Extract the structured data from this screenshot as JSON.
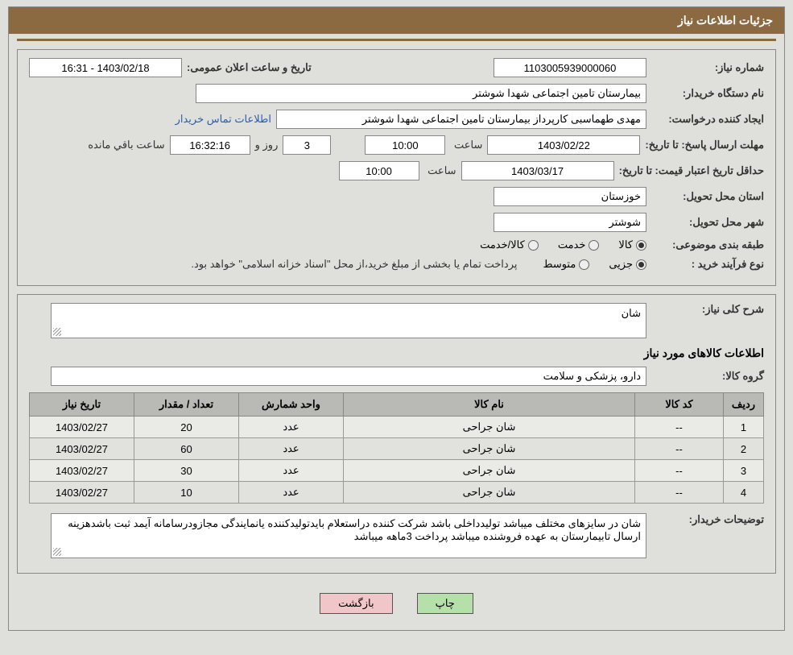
{
  "header": {
    "title": "جزئیات اطلاعات نیاز"
  },
  "info": {
    "request_no_label": "شماره نیاز:",
    "request_no": "1103005939000060",
    "announce_label": "تاریخ و ساعت اعلان عمومی:",
    "announce_value": "1403/02/18 - 16:31",
    "buyer_org_label": "نام دستگاه خریدار:",
    "buyer_org": "بیمارستان تامین اجتماعی شهدا شوشتر",
    "requester_label": "ایجاد کننده درخواست:",
    "requester": "مهدی طهماسبی کارپرداز بیمارستان تامین اجتماعی شهدا شوشتر",
    "contact_link": "اطلاعات تماس خریدار",
    "deadline_label": "مهلت ارسال پاسخ: تا تاریخ:",
    "deadline_date": "1403/02/22",
    "time_label": "ساعت",
    "deadline_time": "10:00",
    "days_remaining": "3",
    "days_suffix": "روز و",
    "time_remaining": "16:32:16",
    "remaining_suffix": "ساعت باقي مانده",
    "validity_label": "حداقل تاریخ اعتبار قیمت: تا تاریخ:",
    "validity_date": "1403/03/17",
    "validity_time": "10:00",
    "province_label": "استان محل تحویل:",
    "province": "خوزستان",
    "city_label": "شهر محل تحویل:",
    "city": "شوشتر",
    "category_label": "طبقه بندی موضوعی:",
    "cat_goods": "کالا",
    "cat_service": "خدمت",
    "cat_both": "کالا/خدمت",
    "purchase_type_label": "نوع فرآیند خرید :",
    "pt_minor": "جزیی",
    "pt_medium": "متوسط",
    "purchase_note": "پرداخت تمام یا بخشی از مبلغ خرید،از محل \"اسناد خزانه اسلامی\" خواهد بود."
  },
  "desc": {
    "general_label": "شرح کلی نیاز:",
    "general_value": "شان",
    "items_title": "اطلاعات کالاهای مورد نیاز",
    "group_label": "گروه کالا:",
    "group_value": "دارو، پزشکی و سلامت",
    "buyer_notes_label": "توضیحات خریدار:",
    "buyer_notes": "شان در سایزهای مختلف میباشد تولیدداخلی باشد شرکت کننده دراستعلام بایدتولیدکننده یانمایندگی مجازودرسامانه آیمد ثبت باشدهزینه ارسال تابیمارستان به عهده فروشنده میباشد پرداخت 3ماهه میباشد"
  },
  "table": {
    "headers": {
      "row": "ردیف",
      "code": "کد کالا",
      "name": "نام کالا",
      "unit": "واحد شمارش",
      "qty": "تعداد / مقدار",
      "date": "تاریخ نیاز"
    },
    "rows": [
      {
        "row": "1",
        "code": "--",
        "name": "شان جراحی",
        "unit": "عدد",
        "qty": "20",
        "date": "1403/02/27"
      },
      {
        "row": "2",
        "code": "--",
        "name": "شان جراحی",
        "unit": "عدد",
        "qty": "60",
        "date": "1403/02/27"
      },
      {
        "row": "3",
        "code": "--",
        "name": "شان جراحی",
        "unit": "عدد",
        "qty": "30",
        "date": "1403/02/27"
      },
      {
        "row": "4",
        "code": "--",
        "name": "شان جراحی",
        "unit": "عدد",
        "qty": "10",
        "date": "1403/02/27"
      }
    ]
  },
  "buttons": {
    "print": "چاپ",
    "back": "بازگشت"
  },
  "colors": {
    "header_bg": "#8c6a41",
    "panel_bg": "#dfdfdc",
    "th_bg": "#b9b9b6"
  }
}
